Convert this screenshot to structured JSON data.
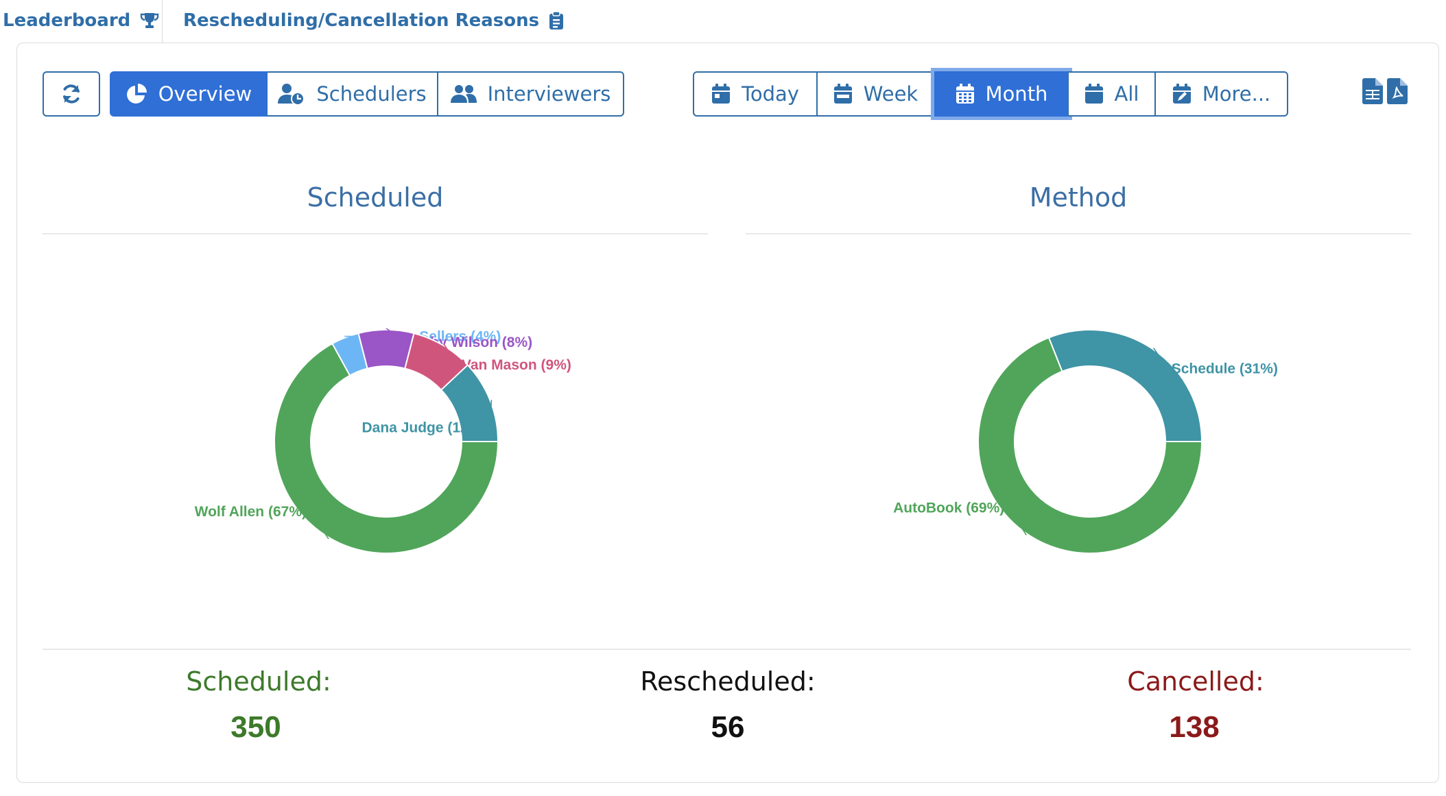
{
  "tabs": [
    {
      "label": "Leaderboard",
      "icon": "trophy-icon"
    },
    {
      "label": "Rescheduling/Cancellation Reasons",
      "icon": "clipboard-icon"
    }
  ],
  "view_buttons": [
    {
      "label": "Overview",
      "icon": "pie-chart-icon",
      "active": true
    },
    {
      "label": "Schedulers",
      "icon": "user-clock-icon",
      "active": false
    },
    {
      "label": "Interviewers",
      "icon": "users-icon",
      "active": false
    }
  ],
  "range_buttons": [
    {
      "label": "Today",
      "icon": "calendar-day-icon"
    },
    {
      "label": "Week",
      "icon": "calendar-week-icon"
    },
    {
      "label": "Month",
      "icon": "calendar-month-icon",
      "active": true
    },
    {
      "label": "All",
      "icon": "calendar-icon"
    },
    {
      "label": "More...",
      "icon": "calendar-edit-icon"
    }
  ],
  "export_icons": [
    "file-excel-icon",
    "file-pdf-icon"
  ],
  "colors": {
    "brand": "#2f6ea8",
    "active": "#2f6fd6",
    "scheduled": "#3d7a2a",
    "rescheduled": "#111111",
    "cancelled": "#8b1a1a"
  },
  "chart_data": [
    {
      "type": "pie",
      "title": "Scheduled",
      "slices": [
        {
          "label": "Wolf Allen (67%)",
          "value": 67,
          "color": "#50a55a"
        },
        {
          "label": "Laura Sellers (4%)",
          "value": 4,
          "color": "#6db6f5"
        },
        {
          "label": "Abby Wilson (8%)",
          "value": 8,
          "color": "#9a55c6"
        },
        {
          "label": "Van Mason (9%)",
          "value": 9,
          "color": "#d0557d"
        },
        {
          "label": "Dana Judge (12%)",
          "value": 12,
          "color": "#3f94a6"
        }
      ]
    },
    {
      "type": "pie",
      "title": "Method",
      "slices": [
        {
          "label": "AutoBook (69%)",
          "value": 69,
          "color": "#50a55a"
        },
        {
          "label": "Schedule (31%)",
          "value": 31,
          "color": "#3f94a6"
        }
      ]
    }
  ],
  "stats": {
    "scheduled_label": "Scheduled:",
    "scheduled_value": "350",
    "rescheduled_label": "Rescheduled:",
    "rescheduled_value": "56",
    "cancelled_label": "Cancelled:",
    "cancelled_value": "138"
  }
}
